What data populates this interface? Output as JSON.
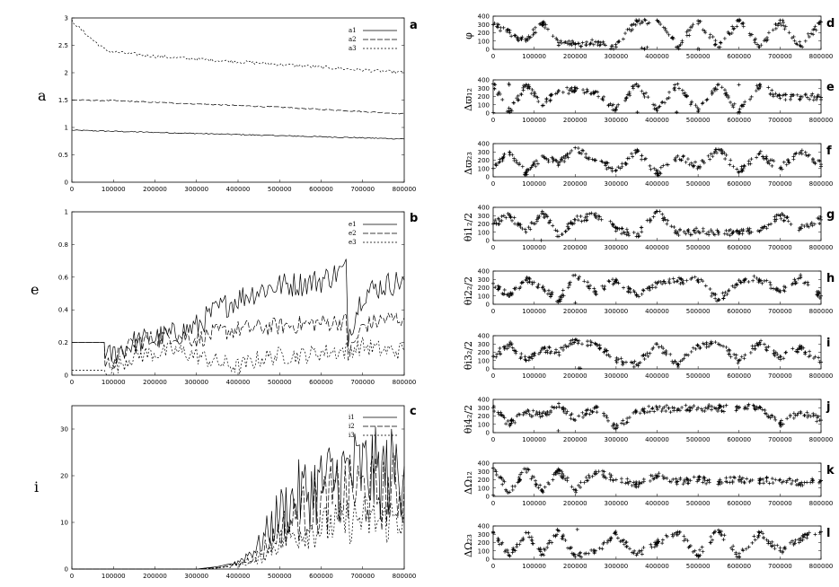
{
  "x_ticks": [
    "0",
    "100000",
    "200000",
    "300000",
    "400000",
    "500000",
    "600000",
    "700000",
    "800000"
  ],
  "chart_data": [
    {
      "type": "line",
      "letter": "a",
      "ylabel": "a",
      "xlim": [
        0,
        800000
      ],
      "ylim": [
        0,
        3
      ],
      "yticks": [
        "0",
        "0.5",
        "1",
        "1.5",
        "2",
        "2.5",
        "3"
      ],
      "legend": [
        "a1",
        "a2",
        "a3"
      ],
      "legend_position": "top-right",
      "series": [
        {
          "name": "a1",
          "x": [
            0,
            100000,
            200000,
            300000,
            400000,
            500000,
            600000,
            700000,
            800000
          ],
          "values": [
            0.95,
            0.93,
            0.91,
            0.89,
            0.87,
            0.85,
            0.83,
            0.81,
            0.79
          ]
        },
        {
          "name": "a2",
          "x": [
            0,
            100000,
            200000,
            300000,
            400000,
            500000,
            600000,
            700000,
            800000
          ],
          "values": [
            1.5,
            1.49,
            1.46,
            1.43,
            1.4,
            1.37,
            1.33,
            1.29,
            1.25
          ]
        },
        {
          "name": "a3",
          "x": [
            0,
            20000,
            50000,
            80000,
            100000,
            150000,
            200000,
            300000,
            400000,
            500000,
            600000,
            700000,
            800000
          ],
          "values": [
            2.95,
            2.8,
            2.6,
            2.42,
            2.38,
            2.34,
            2.3,
            2.25,
            2.2,
            2.15,
            2.1,
            2.05,
            2.0
          ]
        }
      ]
    },
    {
      "type": "line",
      "letter": "b",
      "ylabel": "e",
      "xlim": [
        0,
        800000
      ],
      "ylim": [
        0,
        1
      ],
      "yticks": [
        "0",
        "0.2",
        "0.4",
        "0.6",
        "0.8",
        "1"
      ],
      "legend": [
        "e1",
        "e2",
        "e3"
      ],
      "legend_position": "top-right",
      "series": [
        {
          "name": "e1",
          "x": [
            0,
            78000,
            80000,
            150000,
            250000,
            300000,
            350000,
            400000,
            450000,
            500000,
            550000,
            600000,
            660000,
            665000,
            700000,
            750000,
            800000
          ],
          "values": [
            0.2,
            0.2,
            0.1,
            0.2,
            0.25,
            0.3,
            0.4,
            0.47,
            0.52,
            0.55,
            0.56,
            0.58,
            0.65,
            0.25,
            0.5,
            0.55,
            0.58
          ]
        },
        {
          "name": "e2",
          "x": [
            0,
            78000,
            80000,
            150000,
            250000,
            300000,
            350000,
            400000,
            500000,
            600000,
            660000,
            665000,
            700000,
            750000,
            800000
          ],
          "values": [
            0.2,
            0.2,
            0.05,
            0.2,
            0.25,
            0.22,
            0.26,
            0.28,
            0.3,
            0.32,
            0.33,
            0.12,
            0.3,
            0.34,
            0.35
          ]
        },
        {
          "name": "e3",
          "x": [
            0,
            78000,
            80000,
            150000,
            250000,
            300000,
            350000,
            400000,
            450000,
            500000,
            550000,
            600000,
            660000,
            700000,
            750000,
            800000
          ],
          "values": [
            0.03,
            0.03,
            0.02,
            0.12,
            0.15,
            0.12,
            0.08,
            0.05,
            0.1,
            0.12,
            0.12,
            0.14,
            0.15,
            0.18,
            0.15,
            0.15
          ]
        }
      ]
    },
    {
      "type": "line",
      "letter": "c",
      "ylabel": "i",
      "xlim": [
        0,
        800000
      ],
      "ylim": [
        0,
        35
      ],
      "yticks": [
        "0",
        "10",
        "20",
        "30"
      ],
      "legend": [
        "i1",
        "i2",
        "i3"
      ],
      "legend_position": "top-right",
      "series": [
        {
          "name": "i1",
          "x": [
            0,
            300000,
            350000,
            400000,
            450000,
            500000,
            550000,
            600000,
            650000,
            700000,
            750000,
            800000
          ],
          "values": [
            0,
            0,
            0.5,
            1.5,
            5,
            12,
            16,
            18,
            20,
            21,
            20,
            22
          ]
        },
        {
          "name": "i2",
          "x": [
            0,
            300000,
            350000,
            400000,
            450000,
            500000,
            550000,
            600000,
            650000,
            700000,
            750000,
            800000
          ],
          "values": [
            0,
            0,
            0.3,
            1,
            3,
            8,
            12,
            14,
            16,
            17,
            16,
            18
          ]
        },
        {
          "name": "i3",
          "x": [
            0,
            300000,
            350000,
            400000,
            450000,
            500000,
            550000,
            600000,
            650000,
            700000,
            750000,
            800000
          ],
          "values": [
            0,
            0,
            0.2,
            0.8,
            2,
            6,
            8,
            9,
            10,
            11,
            10,
            12
          ]
        }
      ]
    },
    {
      "type": "scatter",
      "letter": "d",
      "ylabel": "φ",
      "xlim": [
        0,
        800000
      ],
      "ylim": [
        0,
        400
      ],
      "yticks": [
        "0",
        "100",
        "200",
        "300",
        "400"
      ],
      "series": [
        {
          "name": "",
          "x": [
            0,
            40000,
            80000,
            120000,
            160000,
            200000,
            250000,
            300000,
            350000,
            400000,
            450000,
            500000,
            550000,
            600000,
            650000,
            700000,
            750000,
            800000
          ],
          "values": [
            300,
            200,
            100,
            320,
            80,
            60,
            90,
            30,
            340,
            350,
            30,
            345,
            25,
            340,
            30,
            350,
            40,
            330
          ]
        }
      ]
    },
    {
      "type": "scatter",
      "letter": "e",
      "ylabel": "Δϖ₁₂",
      "xlim": [
        0,
        800000
      ],
      "ylim": [
        0,
        400
      ],
      "yticks": [
        "0",
        "100",
        "200",
        "300",
        "400"
      ],
      "series": [
        {
          "name": "",
          "x": [
            0,
            40000,
            80000,
            120000,
            160000,
            200000,
            250000,
            300000,
            350000,
            400000,
            450000,
            500000,
            550000,
            600000,
            650000,
            700000,
            750000,
            800000
          ],
          "values": [
            350,
            10,
            340,
            90,
            270,
            280,
            260,
            40,
            350,
            30,
            350,
            20,
            345,
            15,
            340,
            180,
            200,
            190
          ]
        }
      ]
    },
    {
      "type": "scatter",
      "letter": "f",
      "ylabel": "Δϖ₂₃",
      "xlim": [
        0,
        800000
      ],
      "ylim": [
        0,
        400
      ],
      "yticks": [
        "0",
        "100",
        "200",
        "300",
        "400"
      ],
      "series": [
        {
          "name": "",
          "x": [
            0,
            40000,
            80000,
            120000,
            160000,
            200000,
            250000,
            300000,
            350000,
            400000,
            450000,
            500000,
            550000,
            600000,
            650000,
            700000,
            750000,
            800000
          ],
          "values": [
            100,
            300,
            50,
            250,
            150,
            350,
            200,
            80,
            300,
            40,
            250,
            120,
            330,
            60,
            280,
            100,
            300,
            150
          ]
        }
      ]
    },
    {
      "type": "scatter",
      "letter": "g",
      "ylabel": "θi1₂/2",
      "xlim": [
        0,
        800000
      ],
      "ylim": [
        0,
        400
      ],
      "yticks": [
        "0",
        "100",
        "200",
        "300",
        "400"
      ],
      "series": [
        {
          "name": "",
          "x": [
            0,
            40000,
            80000,
            120000,
            160000,
            200000,
            250000,
            300000,
            350000,
            400000,
            450000,
            500000,
            550000,
            600000,
            650000,
            700000,
            750000,
            800000
          ],
          "values": [
            200,
            300,
            100,
            350,
            50,
            250,
            300,
            150,
            50,
            350,
            100,
            110,
            100,
            100,
            110,
            300,
            150,
            250
          ]
        }
      ]
    },
    {
      "type": "scatter",
      "letter": "h",
      "ylabel": "θi2₂/2",
      "xlim": [
        0,
        800000
      ],
      "ylim": [
        0,
        400
      ],
      "yticks": [
        "0",
        "100",
        "200",
        "300",
        "400"
      ],
      "series": [
        {
          "name": "",
          "x": [
            0,
            40000,
            80000,
            120000,
            160000,
            200000,
            250000,
            300000,
            350000,
            400000,
            450000,
            500000,
            550000,
            600000,
            650000,
            700000,
            750000,
            800000
          ],
          "values": [
            250,
            100,
            300,
            200,
            50,
            350,
            150,
            300,
            100,
            250,
            280,
            300,
            50,
            290,
            300,
            150,
            320,
            100
          ]
        }
      ]
    },
    {
      "type": "scatter",
      "letter": "i",
      "ylabel": "θi3₂/2",
      "xlim": [
        0,
        800000
      ],
      "ylim": [
        0,
        400
      ],
      "yticks": [
        "0",
        "100",
        "200",
        "300",
        "400"
      ],
      "series": [
        {
          "name": "",
          "x": [
            0,
            40000,
            80000,
            120000,
            160000,
            200000,
            250000,
            300000,
            350000,
            400000,
            450000,
            500000,
            550000,
            600000,
            650000,
            700000,
            750000,
            800000
          ],
          "values": [
            150,
            300,
            100,
            250,
            200,
            350,
            300,
            100,
            50,
            300,
            50,
            280,
            300,
            100,
            320,
            150,
            250,
            80
          ]
        }
      ]
    },
    {
      "type": "scatter",
      "letter": "j",
      "ylabel": "θi4₂/2",
      "xlim": [
        0,
        800000
      ],
      "ylim": [
        0,
        400
      ],
      "yticks": [
        "0",
        "100",
        "200",
        "300",
        "400"
      ],
      "series": [
        {
          "name": "",
          "x": [
            0,
            40000,
            80000,
            120000,
            160000,
            200000,
            250000,
            300000,
            350000,
            400000,
            450000,
            500000,
            550000,
            600000,
            650000,
            700000,
            750000,
            800000
          ],
          "values": [
            300,
            100,
            250,
            200,
            350,
            150,
            300,
            50,
            250,
            300,
            280,
            300,
            290,
            300,
            310,
            100,
            250,
            150
          ]
        }
      ]
    },
    {
      "type": "scatter",
      "letter": "k",
      "ylabel": "ΔΩ₁₂",
      "xlim": [
        0,
        800000
      ],
      "ylim": [
        0,
        400
      ],
      "yticks": [
        "0",
        "100",
        "200",
        "300",
        "400"
      ],
      "series": [
        {
          "name": "",
          "x": [
            0,
            40000,
            80000,
            120000,
            160000,
            200000,
            250000,
            300000,
            350000,
            400000,
            450000,
            500000,
            550000,
            600000,
            650000,
            700000,
            750000,
            800000
          ],
          "values": [
            340,
            50,
            330,
            60,
            310,
            80,
            300,
            200,
            150,
            250,
            180,
            200,
            180,
            200,
            190,
            200,
            150,
            190
          ]
        }
      ]
    },
    {
      "type": "scatter",
      "letter": "l",
      "ylabel": "ΔΩ₂₃",
      "xlim": [
        0,
        800000
      ],
      "ylim": [
        0,
        400
      ],
      "yticks": [
        "0",
        "100",
        "200",
        "300",
        "400"
      ],
      "series": [
        {
          "name": "",
          "x": [
            0,
            40000,
            80000,
            120000,
            160000,
            200000,
            250000,
            300000,
            350000,
            400000,
            450000,
            500000,
            550000,
            600000,
            650000,
            700000,
            750000,
            800000
          ],
          "values": [
            330,
            40,
            320,
            60,
            340,
            30,
            100,
            300,
            50,
            200,
            330,
            50,
            350,
            30,
            320,
            100,
            250,
            330
          ]
        }
      ]
    }
  ]
}
